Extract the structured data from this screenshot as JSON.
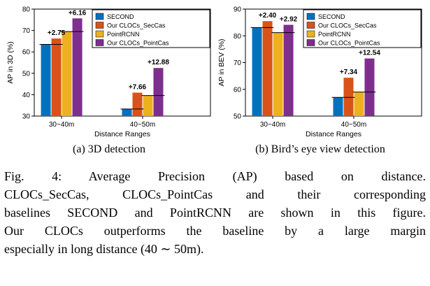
{
  "figure": {
    "subcaption_a": "(a) 3D detection",
    "subcaption_b": "(b) Bird’s eye view detection",
    "caption_lines": [
      "Fig. 4: Average Precision (AP) based on distance.",
      "CLOCs_SecCas, CLOCs_PointCas and their corresponding",
      "baselines SECOND and PointRCNN are shown in this figure.",
      "Our CLOCs outperforms the baseline by a large margin",
      "especially in long distance (40 ∼ 50m)."
    ]
  },
  "colors": {
    "second": "#0072BD",
    "clocs_seccas": "#D95319",
    "pointrcnn": "#EDB120",
    "clocs_pointcas": "#7E2F8E"
  },
  "chart_data": [
    {
      "type": "bar",
      "title": "",
      "xlabel": "Distance Ranges",
      "ylabel": "AP in 3D (%)",
      "ylim": [
        30,
        80
      ],
      "yticks": [
        30,
        40,
        50,
        60,
        70,
        80
      ],
      "categories": [
        "30~40m",
        "40~50m"
      ],
      "legend_position": "top-right",
      "series": [
        {
          "name": "SECOND",
          "color": "#0072BD",
          "values": [
            63.5,
            33.3
          ]
        },
        {
          "name": "Our CLOCs_SecCas",
          "color": "#D95319",
          "values": [
            66.25,
            40.96
          ]
        },
        {
          "name": "PointRCNN",
          "color": "#EDB120",
          "values": [
            69.5,
            39.6
          ]
        },
        {
          "name": "Our CLOCs_PointCas",
          "color": "#7E2F8E",
          "values": [
            75.66,
            52.48
          ]
        }
      ],
      "annotations": [
        {
          "group": 0,
          "bar": 1,
          "label": "+2.75"
        },
        {
          "group": 0,
          "bar": 3,
          "label": "+6.16"
        },
        {
          "group": 1,
          "bar": 1,
          "label": "+7.66"
        },
        {
          "group": 1,
          "bar": 3,
          "label": "+12.88"
        }
      ]
    },
    {
      "type": "bar",
      "title": "",
      "xlabel": "Distance Ranges",
      "ylabel": "AP in BEV (%)",
      "ylim": [
        50,
        90
      ],
      "yticks": [
        50,
        60,
        70,
        80,
        90
      ],
      "categories": [
        "30~40m",
        "40~50m"
      ],
      "legend_position": "top-right",
      "series": [
        {
          "name": "SECOND",
          "color": "#0072BD",
          "values": [
            83.1,
            57.0
          ]
        },
        {
          "name": "Our CLOCs_SecCas",
          "color": "#D95319",
          "values": [
            85.5,
            64.34
          ]
        },
        {
          "name": "PointRCNN",
          "color": "#EDB120",
          "values": [
            81.2,
            59.0
          ]
        },
        {
          "name": "Our CLOCs_PointCas",
          "color": "#7E2F8E",
          "values": [
            84.12,
            71.54
          ]
        }
      ],
      "annotations": [
        {
          "group": 0,
          "bar": 1,
          "label": "+2.40"
        },
        {
          "group": 0,
          "bar": 3,
          "label": "+2.92"
        },
        {
          "group": 1,
          "bar": 1,
          "label": "+7.34"
        },
        {
          "group": 1,
          "bar": 3,
          "label": "+12.54"
        }
      ]
    }
  ]
}
